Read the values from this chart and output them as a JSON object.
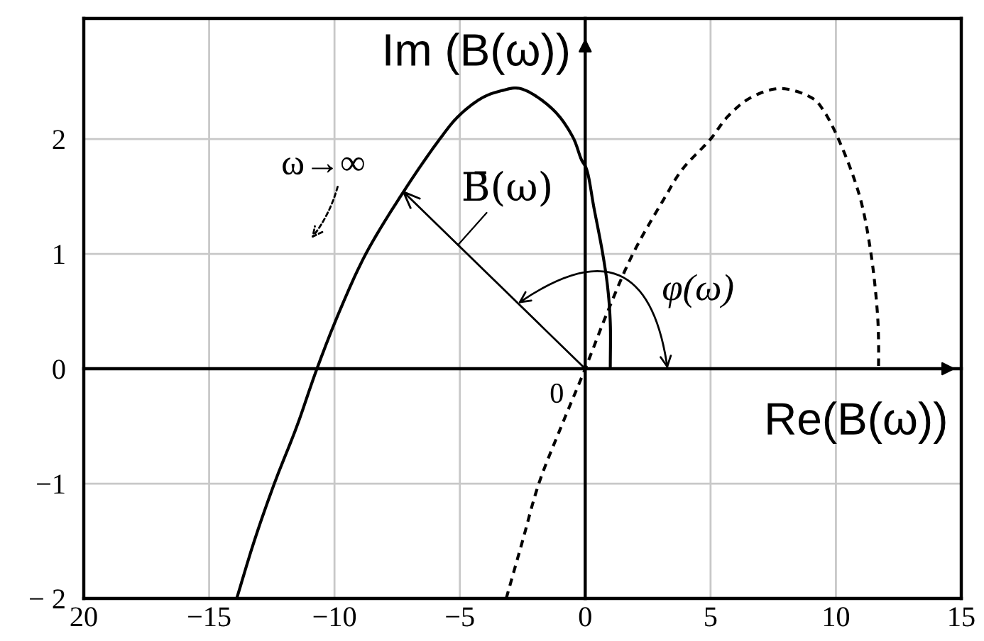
{
  "chart_data": {
    "type": "line",
    "xlabel": "Re(B(ω))",
    "ylabel": "Im (B(ω))",
    "xlim": [
      -20,
      15
    ],
    "xticks": [
      {
        "value": -20,
        "label": "20"
      },
      {
        "value": -15,
        "label": "−15"
      },
      {
        "value": -10,
        "label": "−10"
      },
      {
        "value": -5,
        "label": "−5"
      },
      0,
      5,
      10,
      15
    ],
    "ylim": [
      -2,
      3.05
    ],
    "yticks": [
      {
        "value": -2,
        "label": "− 2"
      },
      {
        "value": -1,
        "label": "−1"
      },
      0,
      1,
      2
    ],
    "grid": true,
    "series": [
      {
        "color": "#000000",
        "line_style": "solid",
        "x": [
          -13.9,
          -13.2,
          -12.4,
          -11.5,
          -10.7,
          -9.8,
          -8.75,
          -7.25,
          -5.8,
          -5.05,
          -4.1,
          -3.35,
          -2.6,
          -1.3,
          -0.5,
          -0.15,
          0.05,
          0.35,
          0.7,
          0.9,
          1.0,
          1.0
        ],
        "values": [
          -2,
          -1.5,
          -1,
          -0.5,
          0,
          0.5,
          1,
          1.54,
          2,
          2.2,
          2.36,
          2.42,
          2.44,
          2.26,
          2.02,
          1.82,
          1.74,
          1.4,
          1.0,
          0.7,
          0.4,
          0
        ]
      },
      {
        "color": "#000000",
        "line_style": "dashed",
        "x": [
          -3.15,
          -2.5,
          -1.85,
          -0.95,
          0,
          0.9,
          1.9,
          3.2,
          3.85,
          5.0,
          5.7,
          6.6,
          7.8,
          9.1,
          9.5,
          10.1,
          10.95,
          11.4,
          11.65,
          11.7,
          11.7
        ],
        "values": [
          -2,
          -1.5,
          -1,
          -0.5,
          0,
          0.5,
          1,
          1.5,
          1.73,
          2,
          2.2,
          2.36,
          2.44,
          2.35,
          2.25,
          2,
          1.5,
          1,
          0.5,
          0.25,
          0
        ]
      }
    ],
    "annotations": [
      "ω→∞",
      {
        "text": "B̄(ω)",
        "x": -7.25,
        "y": 1.54
      },
      "φ(ω)",
      {
        "text": "0",
        "x": 0,
        "y": 0
      }
    ]
  }
}
